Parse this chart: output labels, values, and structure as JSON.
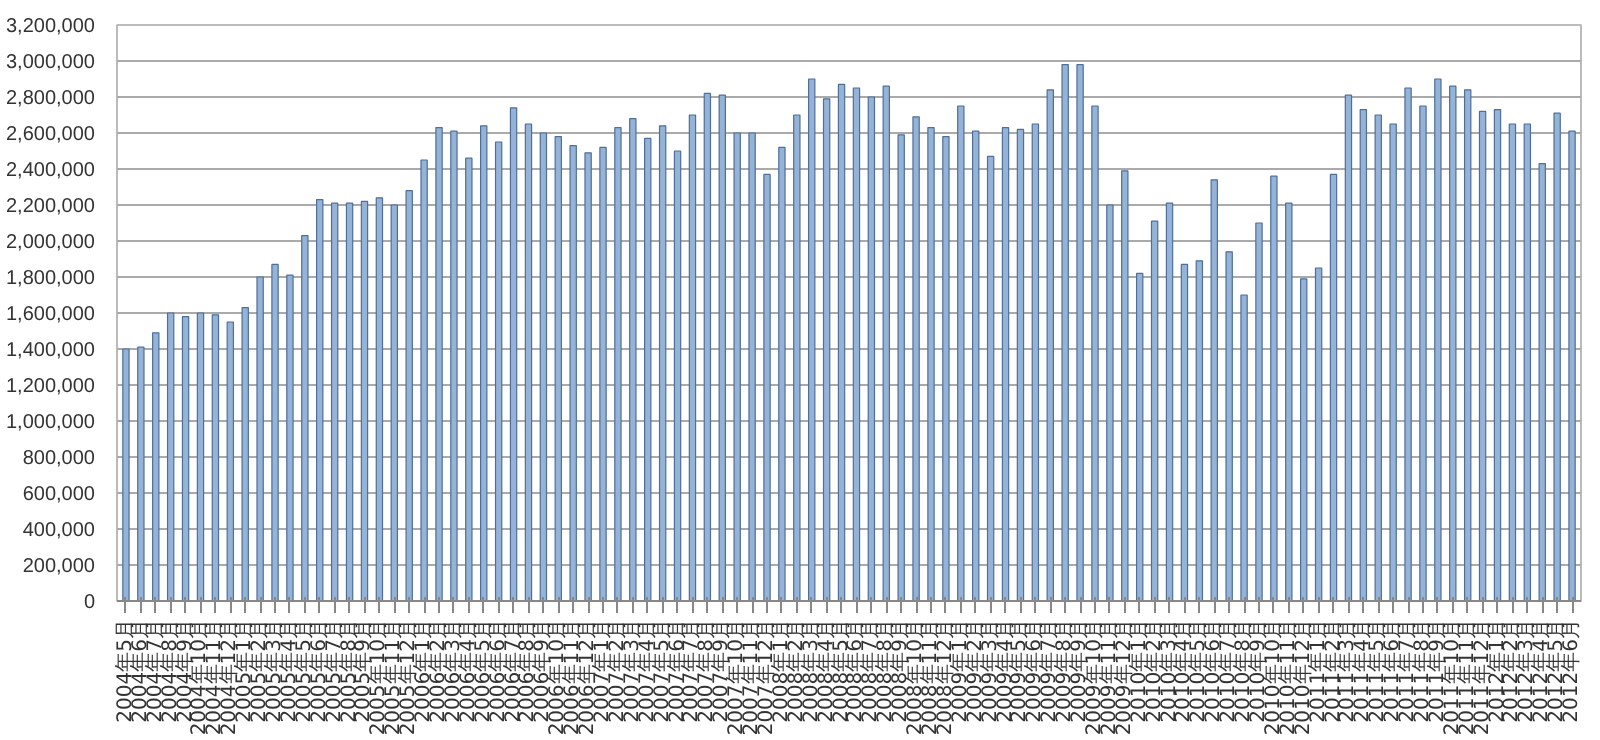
{
  "chart_data": {
    "type": "bar",
    "categories": [
      "2004年5月",
      "2004年6月",
      "2004年7月",
      "2004年8月",
      "2004年9月",
      "2004年10月",
      "2004年11月",
      "2004年12月",
      "2005年1月",
      "2005年2月",
      "2005年3月",
      "2005年4月",
      "2005年5月",
      "2005年6月",
      "2005年7月",
      "2005年8月",
      "2005年9月",
      "2005年10月",
      "2005年11月",
      "2005年12月",
      "2006年1月",
      "2006年2月",
      "2006年3月",
      "2006年4月",
      "2006年5月",
      "2006年6月",
      "2006年7月",
      "2006年8月",
      "2006年9月",
      "2006年10月",
      "2006年11月",
      "2006年12月",
      "2007年1月",
      "2007年2月",
      "2007年3月",
      "2007年4月",
      "2007年5月",
      "2007年6月",
      "2007年7月",
      "2007年8月",
      "2007年9月",
      "2007年10月",
      "2007年11月",
      "2007年12月",
      "2008年1月",
      "2008年2月",
      "2008年3月",
      "2008年4月",
      "2008年5月",
      "2008年6月",
      "2008年7月",
      "2008年8月",
      "2008年9月",
      "2008年10月",
      "2008年11月",
      "2008年12月",
      "2009年1月",
      "2009年2月",
      "2009年3月",
      "2009年4月",
      "2009年5月",
      "2009年6月",
      "2009年7月",
      "2009年8月",
      "2009年9月",
      "2009年10月",
      "2009年11月",
      "2009年12月",
      "2010年1月",
      "2010年2月",
      "2010年3月",
      "2010年4月",
      "2010年5月",
      "2010年6月",
      "2010年7月",
      "2010年8月",
      "2010年9月",
      "2010年10月",
      "2010年11月",
      "2010年12月",
      "2011年1月",
      "2011年2月",
      "2011年3月",
      "2011年4月",
      "2011年5月",
      "2011年6月",
      "2011年7月",
      "2011年8月",
      "2011年9月",
      "2011年10月",
      "2011年11月",
      "2011年12月",
      "2012年1月",
      "2012年2月",
      "2012年3月",
      "2012年4月",
      "2012年5月",
      "2012年6月"
    ],
    "values": [
      1400000,
      1410000,
      1490000,
      1600000,
      1580000,
      1600000,
      1590000,
      1550000,
      1630000,
      1800000,
      1870000,
      1810000,
      2030000,
      2230000,
      2210000,
      2210000,
      2220000,
      2240000,
      2200000,
      2280000,
      2450000,
      2630000,
      2610000,
      2460000,
      2640000,
      2550000,
      2740000,
      2650000,
      2600000,
      2580000,
      2530000,
      2490000,
      2520000,
      2630000,
      2680000,
      2570000,
      2640000,
      2500000,
      2700000,
      2820000,
      2810000,
      2600000,
      2600000,
      2370000,
      2520000,
      2700000,
      2900000,
      2790000,
      2870000,
      2850000,
      2800000,
      2860000,
      2590000,
      2690000,
      2630000,
      2580000,
      2750000,
      2610000,
      2470000,
      2630000,
      2620000,
      2650000,
      2840000,
      2980000,
      2980000,
      2750000,
      2200000,
      2390000,
      1820000,
      2110000,
      2210000,
      1870000,
      1890000,
      2340000,
      1940000,
      1700000,
      2100000,
      2360000,
      2210000,
      1790000,
      1850000,
      2370000,
      2810000,
      2730000,
      2700000,
      2650000,
      2850000,
      2750000,
      2900000,
      2860000,
      2840000,
      2720000,
      2730000,
      2650000,
      2650000,
      2430000,
      2710000,
      2610000
    ],
    "color": "#95b3d7",
    "ylim": [
      0,
      3200000
    ],
    "yticks": [
      {
        "value": 0,
        "label": "0"
      },
      {
        "value": 200000,
        "label": "200,000"
      },
      {
        "value": 400000,
        "label": "400,000"
      },
      {
        "value": 600000,
        "label": "600,000"
      },
      {
        "value": 800000,
        "label": "800,000"
      },
      {
        "value": 1000000,
        "label": "1,000,000"
      },
      {
        "value": 1200000,
        "label": "1,200,000"
      },
      {
        "value": 1400000,
        "label": "1,400,000"
      },
      {
        "value": 1600000,
        "label": "1,600,000"
      },
      {
        "value": 1800000,
        "label": "1,800,000"
      },
      {
        "value": 2000000,
        "label": "2,000,000"
      },
      {
        "value": 2200000,
        "label": "2,200,000"
      },
      {
        "value": 2400000,
        "label": "2,400,000"
      },
      {
        "value": 2600000,
        "label": "2,600,000"
      },
      {
        "value": 2800000,
        "label": "2,800,000"
      },
      {
        "value": 3000000,
        "label": "3,000,000"
      },
      {
        "value": 3200000,
        "label": "3,200,000"
      }
    ],
    "grid": "y"
  }
}
